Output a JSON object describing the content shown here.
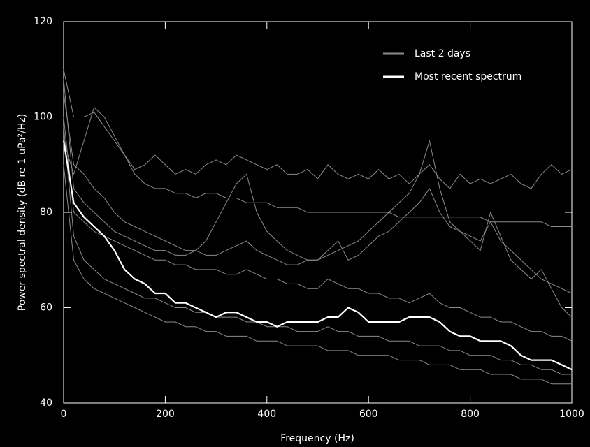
{
  "chart_data": {
    "type": "line",
    "xlabel": "Frequency (Hz)",
    "ylabel": "Power spectral density (dB re 1 uPa²/Hz)",
    "xlim": [
      0,
      1000
    ],
    "xticks": [
      0,
      200,
      400,
      600,
      800,
      1000
    ],
    "ylim": [
      40,
      120
    ],
    "yticks": [
      40,
      60,
      80,
      100,
      120
    ],
    "grid": false,
    "legend": "upper right",
    "x": [
      0,
      20,
      40,
      60,
      80,
      100,
      120,
      140,
      160,
      180,
      200,
      220,
      240,
      260,
      280,
      300,
      320,
      340,
      360,
      380,
      400,
      420,
      440,
      460,
      480,
      500,
      520,
      540,
      560,
      580,
      600,
      620,
      640,
      660,
      680,
      700,
      720,
      740,
      760,
      780,
      800,
      820,
      840,
      860,
      880,
      900,
      920,
      940,
      960,
      980,
      1000
    ],
    "series": [
      {
        "name": "Last 2 days",
        "color": "#8c8c8c",
        "values": [
          [
            110,
            100,
            100,
            101,
            98,
            95,
            92,
            89,
            90,
            92,
            90,
            88,
            89,
            88,
            90,
            91,
            90,
            92,
            91,
            90,
            89,
            90,
            88,
            88,
            89,
            87,
            90,
            88,
            87,
            88,
            87,
            89,
            87,
            88,
            86,
            88,
            90,
            87,
            85,
            88,
            86,
            87,
            86,
            87,
            88,
            86,
            85,
            88,
            90,
            88,
            89
          ],
          [
            108,
            85,
            82,
            80,
            78,
            76,
            75,
            74,
            73,
            72,
            72,
            71,
            71,
            72,
            74,
            78,
            82,
            86,
            88,
            80,
            76,
            74,
            72,
            71,
            70,
            70,
            71,
            72,
            73,
            74,
            76,
            78,
            80,
            82,
            84,
            88,
            95,
            85,
            78,
            76,
            74,
            72,
            80,
            75,
            70,
            68,
            66,
            68,
            64,
            60,
            58
          ],
          [
            100,
            80,
            78,
            76,
            75,
            74,
            73,
            72,
            71,
            70,
            70,
            69,
            69,
            68,
            68,
            68,
            67,
            67,
            68,
            67,
            66,
            66,
            65,
            65,
            64,
            64,
            66,
            65,
            64,
            64,
            63,
            63,
            62,
            62,
            61,
            62,
            63,
            61,
            60,
            60,
            59,
            58,
            58,
            57,
            57,
            56,
            55,
            55,
            54,
            54,
            53
          ],
          [
            90,
            70,
            66,
            64,
            63,
            62,
            61,
            60,
            59,
            58,
            57,
            57,
            56,
            56,
            55,
            55,
            54,
            54,
            54,
            53,
            53,
            53,
            52,
            52,
            52,
            52,
            51,
            51,
            51,
            50,
            50,
            50,
            50,
            49,
            49,
            49,
            48,
            48,
            48,
            47,
            47,
            47,
            46,
            46,
            46,
            45,
            45,
            45,
            44,
            44,
            44
          ],
          [
            105,
            90,
            88,
            85,
            83,
            80,
            78,
            77,
            76,
            75,
            74,
            73,
            72,
            72,
            71,
            71,
            72,
            73,
            74,
            72,
            71,
            70,
            69,
            69,
            70,
            70,
            72,
            74,
            70,
            71,
            73,
            75,
            76,
            78,
            80,
            82,
            85,
            80,
            77,
            76,
            75,
            74,
            78,
            74,
            72,
            70,
            68,
            66,
            65,
            64,
            63
          ],
          [
            95,
            88,
            95,
            102,
            100,
            96,
            92,
            88,
            86,
            85,
            85,
            84,
            84,
            83,
            84,
            84,
            83,
            83,
            82,
            82,
            82,
            81,
            81,
            81,
            80,
            80,
            80,
            80,
            80,
            80,
            80,
            80,
            80,
            79,
            79,
            79,
            79,
            79,
            79,
            79,
            79,
            79,
            78,
            78,
            78,
            78,
            78,
            78,
            77,
            77,
            77
          ],
          [
            98,
            75,
            70,
            68,
            66,
            65,
            64,
            63,
            62,
            62,
            61,
            60,
            60,
            59,
            59,
            58,
            58,
            58,
            57,
            57,
            56,
            56,
            56,
            55,
            55,
            55,
            56,
            55,
            55,
            54,
            54,
            54,
            53,
            53,
            53,
            52,
            52,
            52,
            51,
            51,
            50,
            50,
            50,
            49,
            49,
            48,
            48,
            47,
            47,
            46,
            46
          ]
        ]
      },
      {
        "name": "Most recent spectrum",
        "color": "#ffffff",
        "values": [
          95,
          82,
          79,
          77,
          75,
          72,
          68,
          66,
          65,
          63,
          63,
          61,
          61,
          60,
          59,
          58,
          59,
          59,
          58,
          57,
          57,
          56,
          57,
          57,
          57,
          57,
          58,
          58,
          60,
          59,
          57,
          57,
          57,
          57,
          58,
          58,
          58,
          57,
          55,
          54,
          54,
          53,
          53,
          53,
          52,
          50,
          49,
          49,
          49,
          48,
          47
        ]
      }
    ]
  }
}
